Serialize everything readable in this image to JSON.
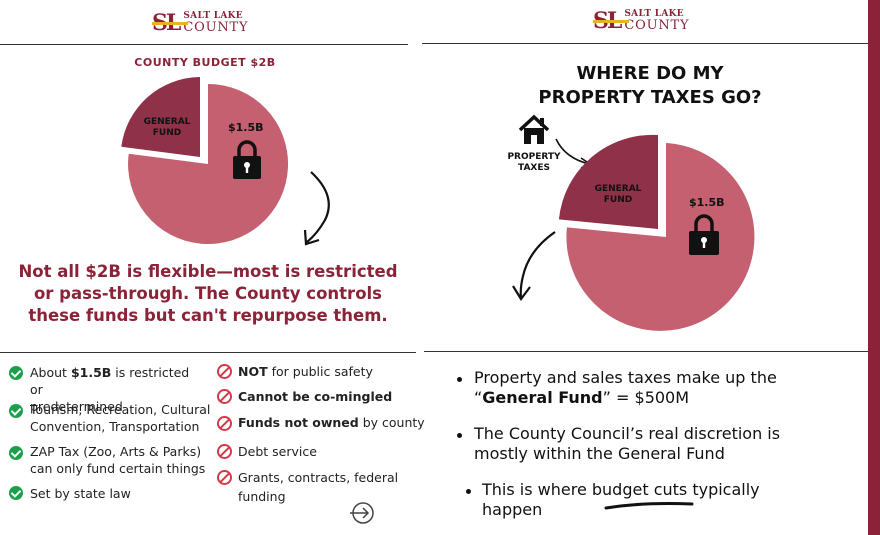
{
  "logo": {
    "mark": "SL",
    "line1": "SALT LAKE",
    "line2": "COUNTY"
  },
  "left": {
    "title": "COUNTY BUDGET $2B",
    "pie": {
      "slice_label_l1": "GENERAL",
      "slice_label_l2": "FUND",
      "amount": "$1.5B"
    },
    "statement_l1": "Not all $2B is flexible—most is restricted",
    "statement_l2": "or pass-through. The County controls",
    "statement_l3": "these funds but can't repurpose them.",
    "allowed": [
      {
        "pre": "About ",
        "bold": "$1.5B",
        "post": " is restricted or",
        "l2": "predetermined"
      },
      {
        "l1": "Tourism, Recreation, Cultural",
        "l2": "Convention, Transportation"
      },
      {
        "l1": "ZAP Tax (Zoo, Arts & Parks)",
        "l2": "can only fund certain things"
      },
      {
        "l1": "Set by state law"
      }
    ],
    "restricted": [
      {
        "bold": "NOT",
        "post": " for public safety"
      },
      {
        "bold": "Cannot be co-mingled",
        "post": ""
      },
      {
        "bold": "Funds not owned",
        "post": " by county"
      },
      {
        "bold": "",
        "post": "Debt service"
      },
      {
        "bold": "",
        "post": "Grants, contracts, federal",
        "l2": "funding"
      }
    ]
  },
  "right": {
    "title_l1": "WHERE DO MY",
    "title_l2": "PROPERTY TAXES GO?",
    "house_label_l1": "PROPERTY",
    "house_label_l2": "TAXES",
    "pie": {
      "slice_label_l1": "GENERAL",
      "slice_label_l2": "FUND",
      "amount": "$1.5B"
    },
    "bullets": [
      {
        "l1": "Property and sales taxes make up the",
        "l2_pre": "“",
        "l2_bold": "General Fund",
        "l2_post": "” = $500M"
      },
      {
        "l1": "The County Council’s real discretion is",
        "l2": "mostly within the General Fund"
      },
      {
        "l1": "This is where budget cuts typically",
        "l2": "happen"
      }
    ]
  },
  "colors": {
    "accent": "#8b2338",
    "pie_main": "#c4606f",
    "pie_slice": "#8f3148",
    "check": "#1aa04a",
    "no": "#d23a4a",
    "logo_bar": "#e6b324"
  }
}
